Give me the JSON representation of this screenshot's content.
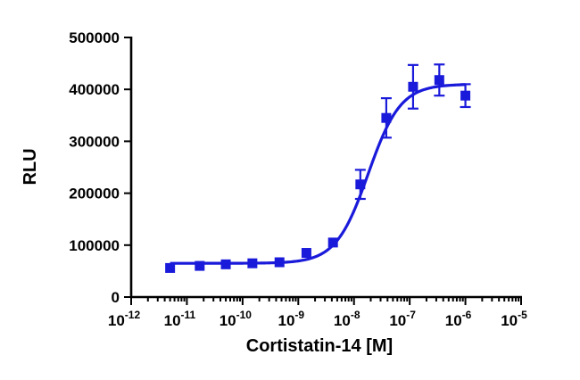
{
  "chart_data": {
    "type": "scatter",
    "title": "",
    "xlabel": "Cortistatin-14 [M]",
    "ylabel": "RLU",
    "xscale": "log",
    "xlim": [
      1e-12,
      1e-05
    ],
    "ylim": [
      0,
      500000
    ],
    "x_ticks": [
      {
        "base": "10",
        "exp": "-12"
      },
      {
        "base": "10",
        "exp": "-11"
      },
      {
        "base": "10",
        "exp": "-10"
      },
      {
        "base": "10",
        "exp": "-9"
      },
      {
        "base": "10",
        "exp": "-8"
      },
      {
        "base": "10",
        "exp": "-7"
      },
      {
        "base": "10",
        "exp": "-6"
      },
      {
        "base": "10",
        "exp": "-5"
      }
    ],
    "y_ticks": [
      "0",
      "100000",
      "200000",
      "300000",
      "400000",
      "500000"
    ],
    "grid": false,
    "legend": "none",
    "color": "#1a1adb",
    "series": [
      {
        "x": [
          5e-12,
          1.7e-11,
          5e-11,
          1.5e-10,
          4.6e-10,
          1.4e-09,
          4.2e-09,
          1.3e-08,
          3.8e-08,
          1.15e-07,
          3.4e-07,
          1e-06
        ],
        "y": [
          56000,
          60000,
          63000,
          65000,
          67000,
          85000,
          105000,
          217000,
          345000,
          405000,
          418000,
          388000
        ],
        "yerr": [
          0,
          0,
          0,
          0,
          0,
          0,
          0,
          28000,
          38000,
          42000,
          30000,
          22000
        ]
      }
    ],
    "fit": {
      "model": "four-parameter logistic",
      "bottom": 65000,
      "top": 410000,
      "ec50": 1.8e-08,
      "hill": 1.5,
      "x_range": [
        5e-12,
        1e-06
      ]
    }
  }
}
